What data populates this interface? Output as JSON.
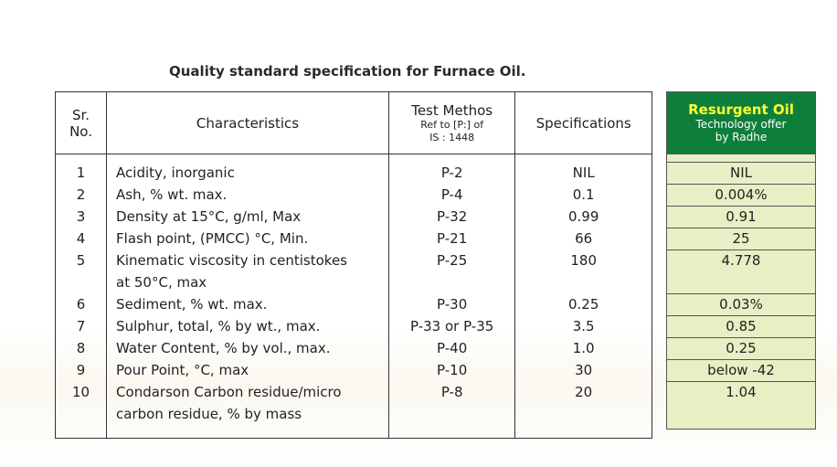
{
  "title": "Quality standard specification for Furnace Oil.",
  "header": {
    "sr_line1": "Sr.",
    "sr_line2": "No.",
    "characteristics": "Characteristics",
    "test_method": "Test Methos",
    "test_method_sub1": "Ref to [P:] of",
    "test_method_sub2": "IS : 1448",
    "specifications": "Specifications"
  },
  "side_header": {
    "brand": "Resurgent Oil",
    "line1": "Technology offer",
    "line2": "by Radhe"
  },
  "rows": [
    {
      "sr": "1",
      "char1": "Acidity, inorganic",
      "char2": "",
      "method": "P-2",
      "spec": "NIL",
      "resurgent": "NIL"
    },
    {
      "sr": "2",
      "char1": "Ash, % wt. max.",
      "char2": "",
      "method": "P-4",
      "spec": "0.1",
      "resurgent": "0.004%"
    },
    {
      "sr": "3",
      "char1": "Density at 15°C, g/ml, Max",
      "char2": "",
      "method": "P-32",
      "spec": "0.99",
      "resurgent": "0.91"
    },
    {
      "sr": "4",
      "char1": "Flash point, (PMCC) °C, Min.",
      "char2": "",
      "method": "P-21",
      "spec": "66",
      "resurgent": "25"
    },
    {
      "sr": "5",
      "char1": "Kinematic viscosity in centistokes",
      "char2": "at 50°C, max",
      "method": "P-25",
      "spec": "180",
      "resurgent": "4.778"
    },
    {
      "sr": "6",
      "char1": "Sediment, % wt. max.",
      "char2": "",
      "method": "P-30",
      "spec": "0.25",
      "resurgent": "0.03%"
    },
    {
      "sr": "7",
      "char1": "Sulphur, total, % by wt., max.",
      "char2": "",
      "method": "P-33 or P-35",
      "spec": "3.5",
      "resurgent": "0.85"
    },
    {
      "sr": "8",
      "char1": "Water Content, % by vol., max.",
      "char2": "",
      "method": "P-40",
      "spec": "1.0",
      "resurgent": "0.25"
    },
    {
      "sr": "9",
      "char1": "Pour Point, °C, max",
      "char2": "",
      "method": "P-10",
      "spec": "30",
      "resurgent": "below -42"
    },
    {
      "sr": "10",
      "char1": "Condarson Carbon residue/micro",
      "char2": "carbon residue, % by mass",
      "method": "P-8",
      "spec": "20",
      "resurgent": "1.04"
    }
  ],
  "colors": {
    "brand_green": "#0e7f3a",
    "brand_yellow": "#ffff33",
    "value_bg": "#e6f0c4"
  }
}
